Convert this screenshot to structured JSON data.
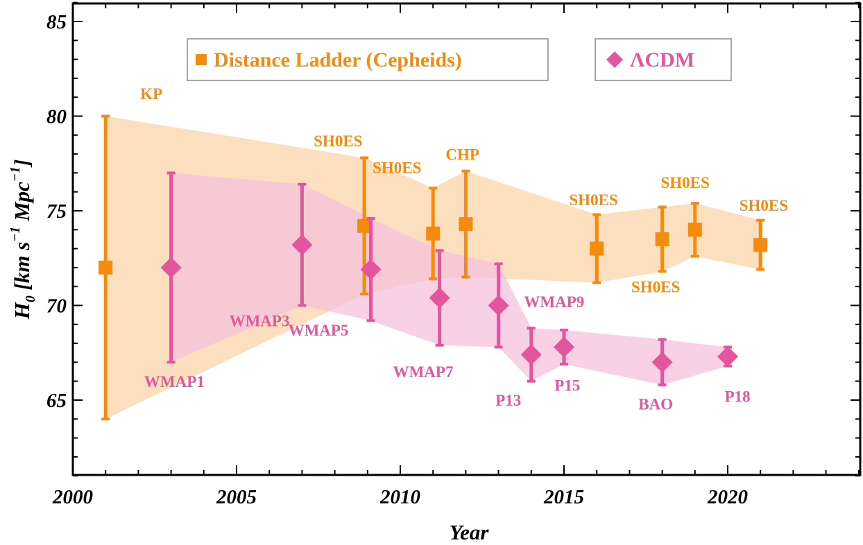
{
  "chart_data": {
    "type": "scatter",
    "xlabel": "Year",
    "ylabel": {
      "symbol": "H",
      "subscript": "0",
      "units": [
        {
          "text": "[km s",
          "sup": false
        },
        {
          "text": "−1",
          "sup": true
        },
        {
          "text": " Mpc",
          "sup": false
        },
        {
          "text": "−1",
          "sup": true
        },
        {
          "text": "]",
          "sup": false
        }
      ]
    },
    "xlim": [
      2000,
      2024
    ],
    "ylim": [
      61,
      86
    ],
    "xticks": [
      "2000",
      "2005",
      "2010",
      "2015",
      "2020"
    ],
    "yticks": [
      "65",
      "70",
      "75",
      "80",
      "85"
    ],
    "grid": false,
    "legend": {
      "placement": "top",
      "entries": [
        {
          "label": "Distance Ladder (Cepheids)",
          "marker": "square",
          "color": "#f58a0f"
        },
        {
          "label": "ΛCDM",
          "marker": "diamond",
          "color": "#e3559c"
        }
      ]
    },
    "series": [
      {
        "name": "Distance Ladder (Cepheids)",
        "marker": "square",
        "color": "#f58a0f",
        "band_color": "#fbd9b3",
        "points": [
          {
            "label": "KP",
            "x": 2001,
            "y": 72.0,
            "lo": 64.0,
            "hi": 80.0
          },
          {
            "label": "SH0ES",
            "x": 2008.9,
            "y": 74.2,
            "lo": 70.6,
            "hi": 77.8
          },
          {
            "label": "SH0ES",
            "x": 2011,
            "y": 73.8,
            "lo": 71.4,
            "hi": 76.2
          },
          {
            "label": "CHP",
            "x": 2012,
            "y": 74.3,
            "lo": 71.5,
            "hi": 77.1
          },
          {
            "label": "SH0ES",
            "x": 2016,
            "y": 73.0,
            "lo": 71.2,
            "hi": 74.8
          },
          {
            "label": "SH0ES",
            "x": 2018,
            "y": 73.5,
            "lo": 71.8,
            "hi": 75.2
          },
          {
            "label": "SH0ES",
            "x": 2019,
            "y": 74.0,
            "lo": 72.6,
            "hi": 75.4
          },
          {
            "label": "SH0ES",
            "x": 2021,
            "y": 73.2,
            "lo": 71.9,
            "hi": 74.5
          }
        ]
      },
      {
        "name": "ΛCDM",
        "marker": "diamond",
        "color": "#e3559c",
        "band_color": "#f5c2dc",
        "points": [
          {
            "label": "WMAP1",
            "x": 2003,
            "y": 72.0,
            "lo": 67.0,
            "hi": 77.0
          },
          {
            "label": "WMAP3",
            "x": 2007,
            "y": 73.2,
            "lo": 70.0,
            "hi": 76.4
          },
          {
            "label": "WMAP5",
            "x": 2009.1,
            "y": 71.9,
            "lo": 69.2,
            "hi": 74.6
          },
          {
            "label": "WMAP7",
            "x": 2011.2,
            "y": 70.4,
            "lo": 67.9,
            "hi": 72.9
          },
          {
            "label": "WMAP9",
            "x": 2013,
            "y": 70.0,
            "lo": 67.8,
            "hi": 72.2
          },
          {
            "label": "P13",
            "x": 2014,
            "y": 67.4,
            "lo": 66.0,
            "hi": 68.8
          },
          {
            "label": "P15",
            "x": 2015,
            "y": 67.8,
            "lo": 66.9,
            "hi": 68.7
          },
          {
            "label": "BAO",
            "x": 2018,
            "y": 67.0,
            "lo": 65.8,
            "hi": 68.2
          },
          {
            "label": "P18",
            "x": 2020,
            "y": 67.3,
            "lo": 66.8,
            "hi": 67.8
          }
        ]
      }
    ]
  }
}
